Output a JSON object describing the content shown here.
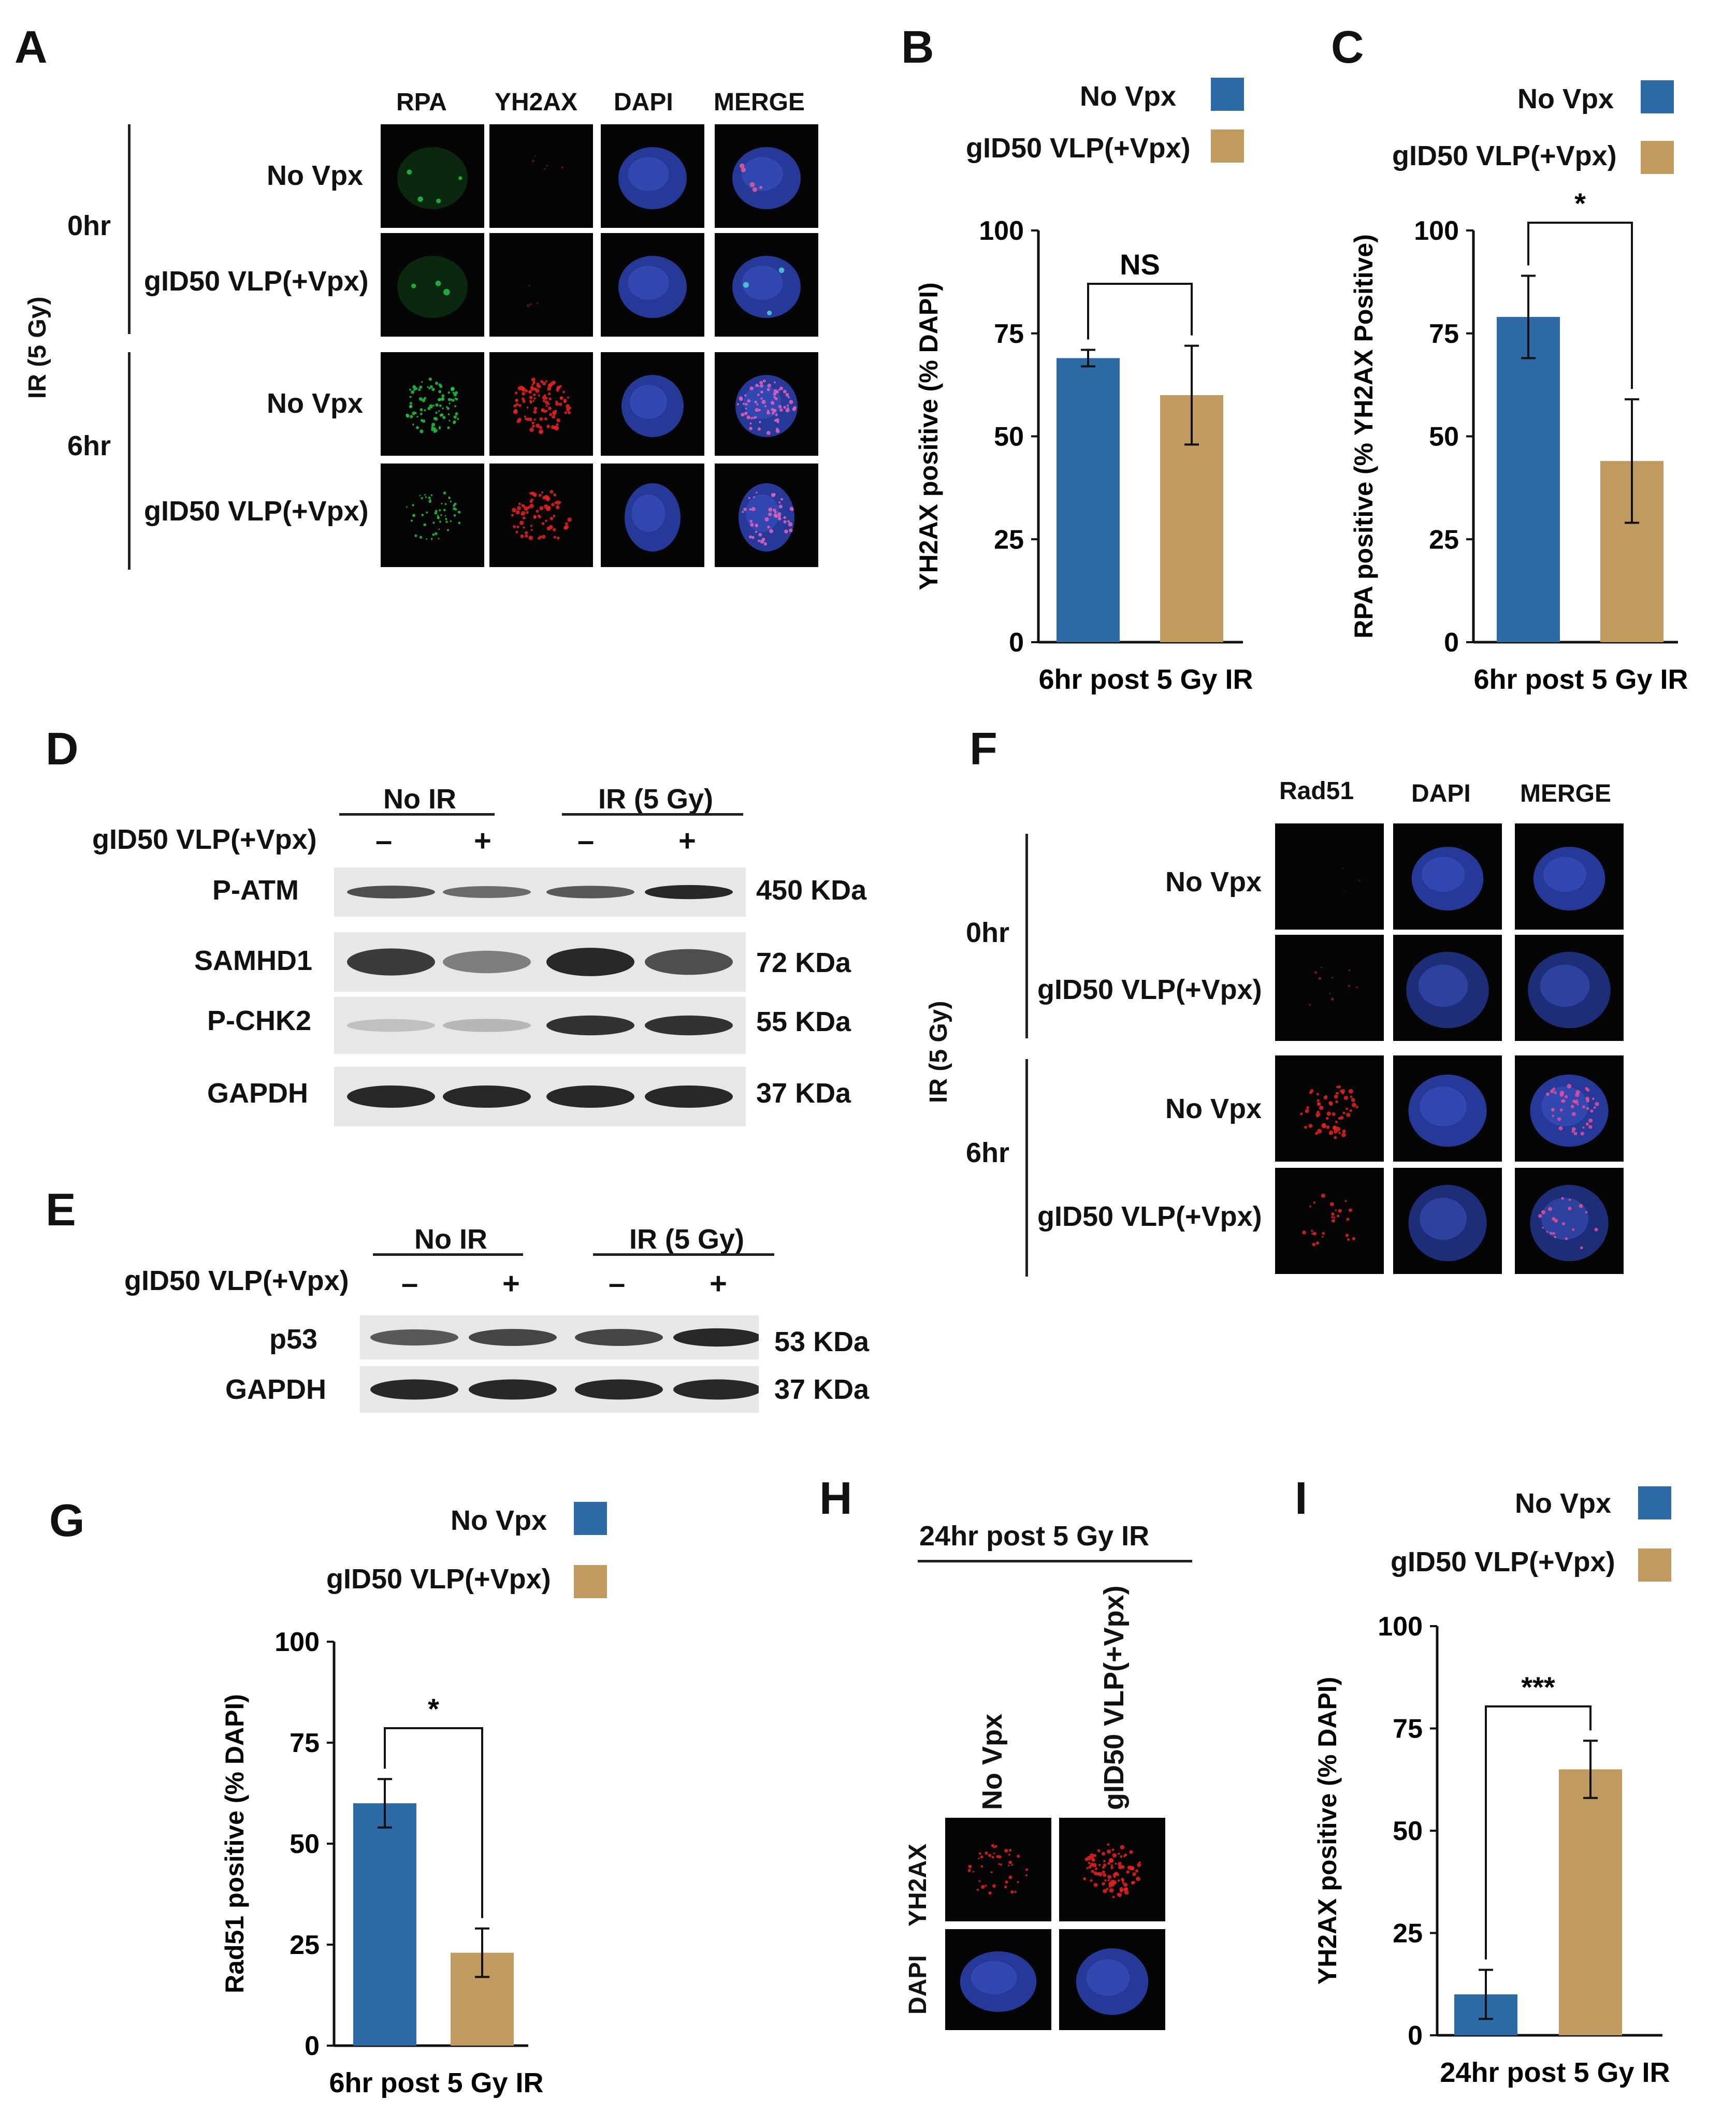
{
  "panels": {
    "A": "A",
    "B": "B",
    "C": "C",
    "D": "D",
    "E": "E",
    "F": "F",
    "G": "G",
    "H": "H",
    "I": "I"
  },
  "colors": {
    "no_vpx": "#2e6aa6",
    "gid50": "#c09a5f",
    "nucleus": "#2a3fa8",
    "rpa": "#22c244",
    "gh2ax": "#e52222"
  },
  "panel_a": {
    "col_headers": [
      "RPA",
      "ΥH2AX",
      "DAPI",
      "MERGE"
    ],
    "row_labels": [
      "No Vpx",
      "gID50 VLP(+Vpx)",
      "No Vpx",
      "gID50 VLP(+Vpx)"
    ],
    "time_0": "0hr",
    "time_6": "6hr",
    "ir_label": "IR (5 Gy)"
  },
  "panel_f": {
    "col_headers": [
      "Rad51",
      "DAPI",
      "MERGE"
    ],
    "row_labels": [
      "No Vpx",
      "gID50 VLP(+Vpx)",
      "No Vpx",
      "gID50 VLP(+Vpx)"
    ],
    "time_0": "0hr",
    "time_6": "6hr",
    "ir_label": "IR (5 Gy)"
  },
  "panel_d": {
    "groups": [
      "No IR",
      "IR (5 Gy)"
    ],
    "treatment_label": "gID50 VLP(+Vpx)",
    "signs": [
      "–",
      "+",
      "–",
      "+"
    ],
    "bands": [
      {
        "name": "P-ATM",
        "size": "450 KDa"
      },
      {
        "name": "SAMHD1",
        "size": "72 KDa"
      },
      {
        "name": "P-CHK2",
        "size": "55 KDa"
      },
      {
        "name": "GAPDH",
        "size": "37 KDa"
      }
    ]
  },
  "panel_e": {
    "groups": [
      "No IR",
      "IR (5 Gy)"
    ],
    "treatment_label": "gID50 VLP(+Vpx)",
    "signs": [
      "–",
      "+",
      "–",
      "+"
    ],
    "bands": [
      {
        "name": "p53",
        "size": "53 KDa"
      },
      {
        "name": "GAPDH",
        "size": "37 KDa"
      }
    ]
  },
  "panel_h": {
    "title": "24hr post 5 Gy IR",
    "col_labels": [
      "No Vpx",
      "gID50 VLP(+Vpx)"
    ],
    "row_labels": [
      "ΥH2AX",
      "DAPI"
    ]
  },
  "chart_data": [
    {
      "panel": "B",
      "type": "bar",
      "series": [
        {
          "name": "No Vpx",
          "values": [
            69
          ]
        },
        {
          "name": "gID50 VLP(+Vpx)",
          "values": [
            60
          ]
        }
      ],
      "errors": [
        2,
        12
      ],
      "xlabel": "6hr post 5 Gy IR",
      "ylabel": "ΥH2AX positive (% DAPI)",
      "ylim": [
        0,
        100
      ],
      "yticks": [
        0,
        25,
        50,
        75,
        100
      ],
      "significance": "NS",
      "legend": "top-right"
    },
    {
      "panel": "C",
      "type": "bar",
      "series": [
        {
          "name": "No Vpx",
          "values": [
            79
          ]
        },
        {
          "name": "gID50 VLP(+Vpx)",
          "values": [
            44
          ]
        }
      ],
      "errors": [
        10,
        15
      ],
      "xlabel": "6hr post 5 Gy IR",
      "ylabel": "RPA positive (% ΥH2AX Positive)",
      "ylim": [
        0,
        100
      ],
      "yticks": [
        0,
        25,
        50,
        75,
        100
      ],
      "significance": "*",
      "legend": "top-right"
    },
    {
      "panel": "G",
      "type": "bar",
      "series": [
        {
          "name": "No Vpx",
          "values": [
            60
          ]
        },
        {
          "name": "gID50 VLP(+Vpx)",
          "values": [
            23
          ]
        }
      ],
      "errors": [
        6,
        6
      ],
      "xlabel": "6hr post 5 Gy IR",
      "ylabel": "Rad51 positive (% DAPI)",
      "ylim": [
        0,
        100
      ],
      "yticks": [
        0,
        25,
        50,
        75,
        100
      ],
      "significance": "*",
      "legend": "top-right"
    },
    {
      "panel": "I",
      "type": "bar",
      "series": [
        {
          "name": "No Vpx",
          "values": [
            10
          ]
        },
        {
          "name": "gID50 VLP(+Vpx)",
          "values": [
            65
          ]
        }
      ],
      "errors": [
        6,
        7
      ],
      "xlabel": "24hr post 5 Gy IR",
      "ylabel": "ΥH2AX positive (% DAPI)",
      "ylim": [
        0,
        100
      ],
      "yticks": [
        0,
        25,
        50,
        75,
        100
      ],
      "significance": "***",
      "legend": "top-right"
    }
  ]
}
